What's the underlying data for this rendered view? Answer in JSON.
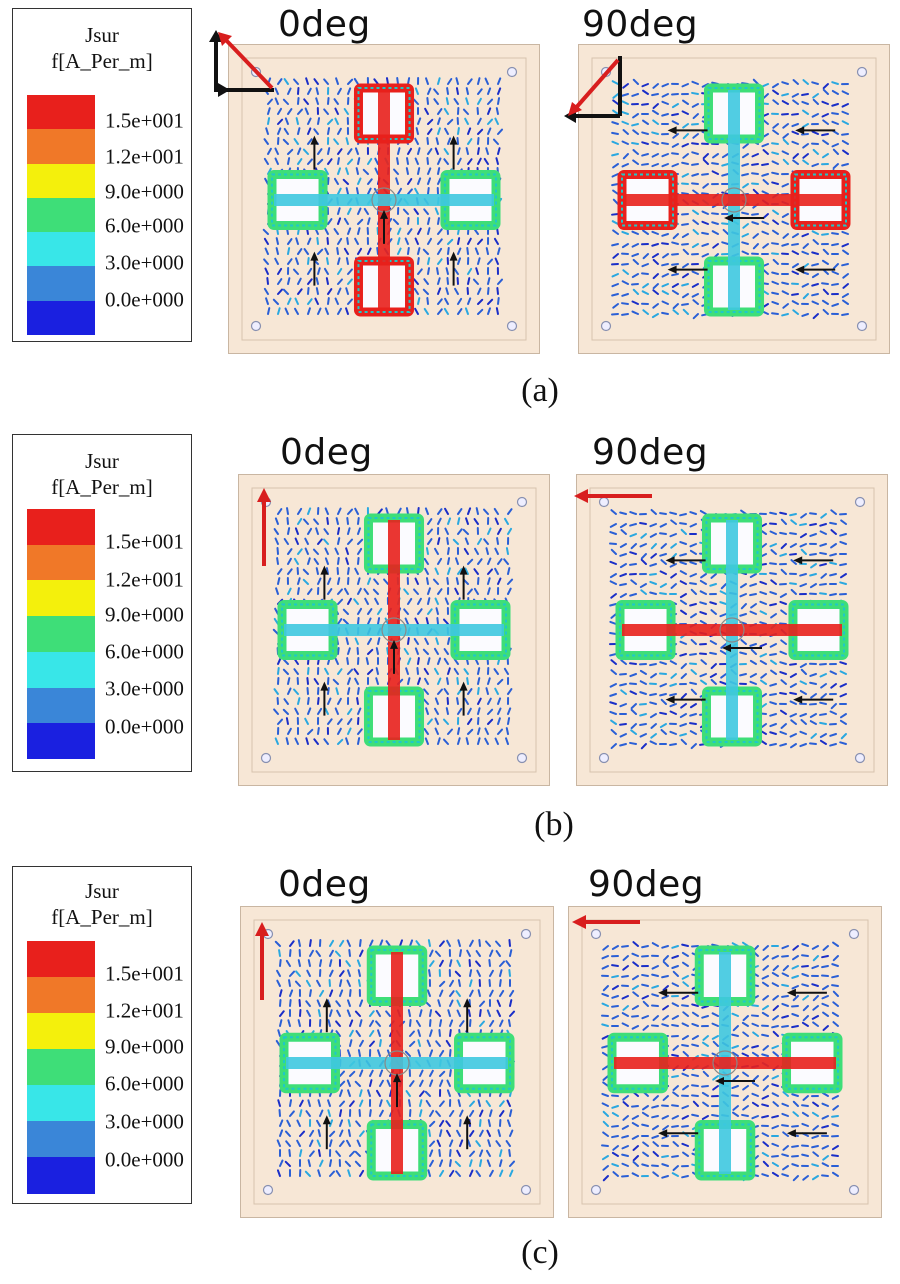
{
  "figure": {
    "legend": {
      "title_line1": "Jsur",
      "title_line2": "f[A_Per_m]",
      "ticks": [
        "1.5e+001",
        "1.2e+001",
        "9.0e+000",
        "6.0e+000",
        "3.0e+000",
        "0.0e+000"
      ],
      "colors": [
        "#e8201c",
        "#f07828",
        "#f4f00c",
        "#3ede78",
        "#38e6e8",
        "#3a86d8",
        "#1a20e0"
      ]
    },
    "rows": [
      {
        "caption": "(a)",
        "angles": [
          "0deg",
          "90deg"
        ]
      },
      {
        "caption": "(b)",
        "angles": [
          "0deg",
          "90deg"
        ]
      },
      {
        "caption": "(c)",
        "angles": [
          "0deg",
          "90deg"
        ]
      }
    ]
  }
}
